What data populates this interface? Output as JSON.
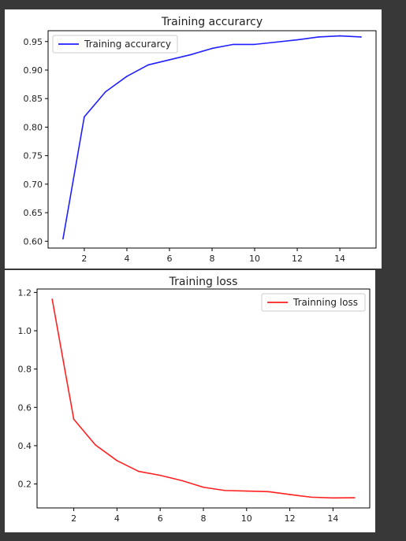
{
  "chart_data": [
    {
      "type": "line",
      "title": "Training accurarcy",
      "xlabel": "",
      "ylabel": "",
      "x": [
        1,
        2,
        3,
        4,
        5,
        6,
        7,
        8,
        9,
        10,
        11,
        12,
        13,
        14,
        15
      ],
      "series": [
        {
          "name": "Training accurarcy",
          "color": "#1f1fff",
          "values": [
            0.604,
            0.818,
            0.862,
            0.889,
            0.909,
            0.918,
            0.927,
            0.938,
            0.945,
            0.945,
            0.949,
            0.953,
            0.958,
            0.96,
            0.958
          ]
        }
      ],
      "xlim": [
        0.3,
        15.7
      ],
      "ylim": [
        0.588,
        0.969
      ],
      "xticks": [
        2,
        4,
        6,
        8,
        10,
        12,
        14
      ],
      "xtick_labels": [
        "2",
        "4",
        "6",
        "8",
        "10",
        "12",
        "14"
      ],
      "yticks": [
        0.6,
        0.65,
        0.7,
        0.75,
        0.8,
        0.85,
        0.9,
        0.95
      ],
      "ytick_labels": [
        "0.60",
        "0.65",
        "0.70",
        "0.75",
        "0.80",
        "0.85",
        "0.90",
        "0.95"
      ],
      "legend_position": "upper-left",
      "grid": false
    },
    {
      "type": "line",
      "title": "Training loss",
      "xlabel": "",
      "ylabel": "",
      "x": [
        1,
        2,
        3,
        4,
        5,
        6,
        7,
        8,
        9,
        10,
        11,
        12,
        13,
        14,
        15
      ],
      "series": [
        {
          "name": "Trainning loss",
          "color": "#ff2020",
          "values": [
            1.165,
            0.538,
            0.404,
            0.322,
            0.266,
            0.245,
            0.218,
            0.183,
            0.166,
            0.163,
            0.16,
            0.145,
            0.131,
            0.127,
            0.128
          ]
        }
      ],
      "xlim": [
        0.3,
        15.7
      ],
      "ylim": [
        0.075,
        1.218
      ],
      "xticks": [
        2,
        4,
        6,
        8,
        10,
        12,
        14
      ],
      "xtick_labels": [
        "2",
        "4",
        "6",
        "8",
        "10",
        "12",
        "14"
      ],
      "yticks": [
        0.2,
        0.4,
        0.6,
        0.8,
        1.0,
        1.2
      ],
      "ytick_labels": [
        "0.2",
        "0.4",
        "0.6",
        "0.8",
        "1.0",
        "1.2"
      ],
      "legend_position": "upper-right",
      "grid": false
    }
  ]
}
